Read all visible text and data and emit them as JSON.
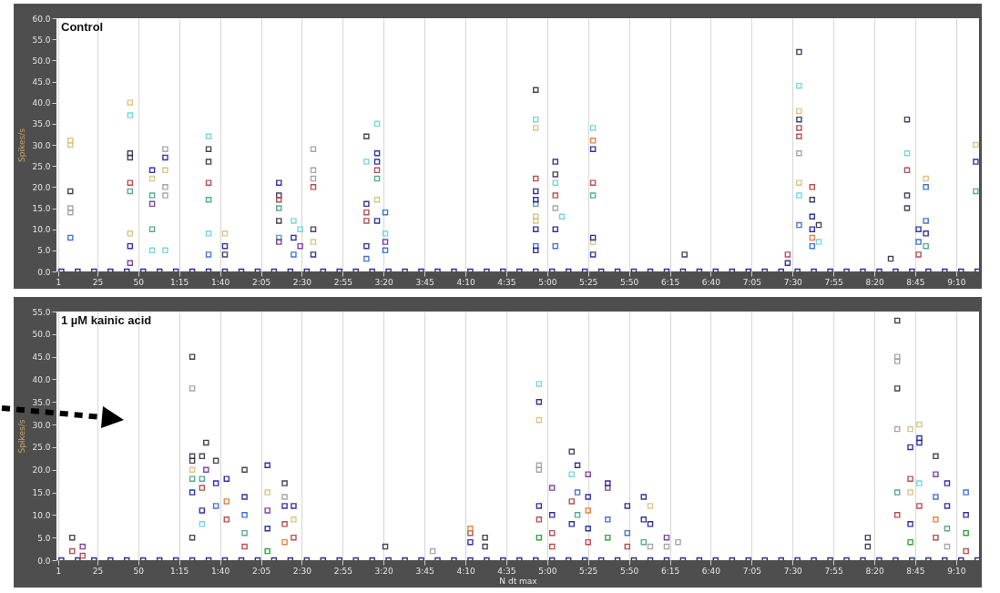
{
  "chart_data": [
    {
      "type": "scatter",
      "title": "Control",
      "ylabel": "Spikes/s",
      "xlim": [
        0,
        564
      ],
      "ylim": [
        0,
        60
      ],
      "grid": "x",
      "marker": "square",
      "xticks": [
        1,
        25,
        50,
        {
          "value": 75,
          "label": "1:15"
        },
        {
          "value": 100,
          "label": "1:40"
        },
        {
          "value": 125,
          "label": "2:05"
        },
        {
          "value": 150,
          "label": "2:30"
        },
        {
          "value": 175,
          "label": "2:55"
        },
        {
          "value": 200,
          "label": "3:20"
        },
        {
          "value": 225,
          "label": "3:45"
        },
        {
          "value": 250,
          "label": "4:10"
        },
        {
          "value": 275,
          "label": "4:35"
        },
        {
          "value": 300,
          "label": "5:00"
        },
        {
          "value": 325,
          "label": "5:25"
        },
        {
          "value": 350,
          "label": "5:50"
        },
        {
          "value": 375,
          "label": "6:15"
        },
        {
          "value": 400,
          "label": "6:40"
        },
        {
          "value": 425,
          "label": "7:05"
        },
        {
          "value": 450,
          "label": "7:30"
        },
        {
          "value": 475,
          "label": "7:55"
        },
        {
          "value": 500,
          "label": "8:20"
        },
        {
          "value": 525,
          "label": "8:45"
        },
        {
          "value": 550,
          "label": "9:10"
        }
      ],
      "yticks": [
        {
          "value": 0,
          "label": "0.0"
        },
        {
          "value": 5,
          "label": "5.0"
        },
        {
          "value": 10,
          "label": "10.0"
        },
        {
          "value": 15,
          "label": "15.0"
        },
        {
          "value": 20,
          "label": "20.0"
        },
        {
          "value": 25,
          "label": "25.0"
        },
        {
          "value": 30,
          "label": "30.0"
        },
        {
          "value": 35,
          "label": "35.0"
        },
        {
          "value": 40,
          "label": "40.0"
        },
        {
          "value": 45,
          "label": "45.0"
        },
        {
          "value": 50,
          "label": "50.0"
        },
        {
          "value": 55,
          "label": "55.0"
        },
        {
          "value": 60,
          "label": "60.0"
        }
      ],
      "series": [
        {
          "color": "#1f1f8f",
          "x": [
            3,
            13,
            23,
            33,
            43,
            53,
            63,
            73,
            83,
            93,
            103,
            113,
            123,
            133,
            143,
            153,
            163,
            173,
            183,
            193,
            203,
            213,
            223,
            233,
            243,
            253,
            263,
            273,
            283,
            293,
            303,
            313,
            323,
            333,
            343,
            353,
            363,
            373,
            383,
            393,
            403,
            413,
            423,
            433,
            443,
            453,
            463,
            473,
            483,
            493,
            503,
            513,
            523,
            533,
            543,
            553,
            563
          ],
          "values": [
            0,
            0,
            0,
            0,
            0,
            0,
            0,
            0,
            0,
            0,
            0,
            0,
            0,
            0,
            0,
            0,
            0,
            0,
            0,
            0,
            0,
            0,
            0,
            0,
            0,
            0,
            0,
            0,
            0,
            0,
            0,
            0,
            0,
            0,
            0,
            0,
            0,
            0,
            0,
            0,
            0,
            0,
            0,
            0,
            0,
            0,
            0,
            0,
            0,
            0,
            0,
            0,
            0,
            0,
            0,
            0,
            0
          ]
        },
        {
          "color": "#d9c37c",
          "x": [
            8.5,
            8.5,
            45,
            45,
            58.5,
            66.5,
            103,
            157,
            196,
            293,
            293,
            293,
            328,
            454,
            454,
            531.5,
            562
          ],
          "values": [
            31,
            30,
            40,
            9,
            22,
            24,
            9,
            7,
            17,
            34,
            13,
            12,
            7,
            38,
            21,
            22,
            30
          ]
        },
        {
          "color": "#74d3df",
          "x": [
            45,
            58.5,
            66.5,
            93,
            93,
            145,
            149,
            189.5,
            196,
            201,
            293,
            305,
            309,
            328,
            454,
            454,
            466,
            520
          ],
          "values": [
            37,
            5,
            5,
            32,
            9,
            12,
            10,
            26,
            35,
            9,
            36,
            21,
            13,
            34,
            44,
            18,
            7,
            28
          ]
        },
        {
          "color": "#3a3a52",
          "x": [
            8.5,
            45,
            45,
            93,
            93,
            103,
            136,
            136,
            157,
            189.5,
            293,
            305,
            384,
            454,
            454,
            462,
            466,
            510,
            520,
            520,
            520
          ],
          "values": [
            19,
            28,
            27,
            29,
            26,
            4,
            18,
            12,
            10,
            32,
            43,
            23,
            4,
            52,
            36,
            17,
            11,
            3,
            36,
            18,
            15
          ]
        },
        {
          "color": "#a3a3a3",
          "x": [
            8.5,
            8.5,
            66.5,
            66.5,
            66.5,
            157,
            157,
            157,
            305,
            454
          ],
          "values": [
            15,
            14,
            29,
            20,
            18,
            29,
            24,
            22,
            15,
            28
          ]
        },
        {
          "color": "#3b6fd1",
          "x": [
            8.5,
            93,
            145,
            189.5,
            201,
            201,
            293,
            305,
            454,
            462,
            527,
            531.5,
            531.5
          ],
          "values": [
            8,
            4,
            4,
            3,
            14,
            5,
            6,
            6,
            11,
            6,
            7,
            20,
            12
          ]
        },
        {
          "color": "#b5474a",
          "x": [
            45,
            93,
            136,
            157,
            189.5,
            189.5,
            196,
            293,
            305,
            328,
            447,
            454,
            454,
            462,
            520,
            527
          ],
          "values": [
            21,
            21,
            17,
            20,
            14,
            12,
            24,
            22,
            18,
            21,
            4,
            34,
            32,
            20,
            24,
            4
          ]
        },
        {
          "color": "#4fa68c",
          "x": [
            45,
            58.5,
            58.5,
            93,
            136,
            136,
            196,
            293,
            328,
            531.5,
            562
          ],
          "values": [
            19,
            18,
            10,
            17,
            15,
            8,
            22,
            16,
            18,
            6,
            19
          ]
        },
        {
          "color": "#2a2a9a",
          "x": [
            45,
            58.5,
            66.5,
            103,
            136,
            145,
            157,
            189.5,
            189.5,
            196,
            196,
            196,
            293,
            293,
            293,
            293,
            305,
            305,
            328,
            328,
            328,
            447,
            462,
            462,
            527,
            531.5,
            562
          ],
          "values": [
            6,
            24,
            27,
            6,
            21,
            8,
            4,
            16,
            6,
            28,
            26,
            12,
            19,
            17,
            10,
            5,
            26,
            10,
            29,
            8,
            4,
            2,
            13,
            10,
            10,
            9,
            26
          ]
        },
        {
          "color": "#7b3d97",
          "x": [
            45,
            58.5,
            136,
            149,
            201
          ],
          "values": [
            2,
            16,
            7,
            6,
            7
          ]
        },
        {
          "color": "#e0803a",
          "x": [
            328,
            462
          ],
          "values": [
            31,
            8
          ]
        }
      ]
    },
    {
      "type": "scatter",
      "title": "1 µM kainic acid",
      "xlabel": "N dt max",
      "ylabel": "Spikes/s",
      "xlim": [
        0,
        564
      ],
      "ylim": [
        0,
        55
      ],
      "grid": "x",
      "marker": "square",
      "xticks": [
        1,
        25,
        50,
        {
          "value": 75,
          "label": "1:15"
        },
        {
          "value": 100,
          "label": "1:40"
        },
        {
          "value": 125,
          "label": "2:05"
        },
        {
          "value": 150,
          "label": "2:30"
        },
        {
          "value": 175,
          "label": "2:55"
        },
        {
          "value": 200,
          "label": "3:20"
        },
        {
          "value": 225,
          "label": "3:45"
        },
        {
          "value": 250,
          "label": "4:10"
        },
        {
          "value": 275,
          "label": "4:35"
        },
        {
          "value": 300,
          "label": "5:00"
        },
        {
          "value": 325,
          "label": "5:25"
        },
        {
          "value": 350,
          "label": "5:50"
        },
        {
          "value": 375,
          "label": "6:15"
        },
        {
          "value": 400,
          "label": "6:40"
        },
        {
          "value": 425,
          "label": "7:05"
        },
        {
          "value": 450,
          "label": "7:30"
        },
        {
          "value": 475,
          "label": "7:55"
        },
        {
          "value": 500,
          "label": "8:20"
        },
        {
          "value": 525,
          "label": "8:45"
        },
        {
          "value": 550,
          "label": "9:10"
        }
      ],
      "yticks": [
        {
          "value": 0,
          "label": "0.0"
        },
        {
          "value": 5,
          "label": "5.0"
        },
        {
          "value": 10,
          "label": "10.0"
        },
        {
          "value": 15,
          "label": "15.0"
        },
        {
          "value": 20,
          "label": "20.0"
        },
        {
          "value": 25,
          "label": "25.0"
        },
        {
          "value": 30,
          "label": "30.0"
        },
        {
          "value": 35,
          "label": "35.0"
        },
        {
          "value": 40,
          "label": "40.0"
        },
        {
          "value": 45,
          "label": "45.0"
        },
        {
          "value": 50,
          "label": "50.0"
        },
        {
          "value": 55,
          "label": "55.0"
        }
      ],
      "series": [
        {
          "color": "#1f1f8f",
          "x": [
            3,
            13,
            23,
            33,
            43,
            53,
            63,
            73,
            83,
            93,
            103,
            113,
            123,
            133,
            143,
            153,
            163,
            173,
            183,
            193,
            203,
            213,
            223,
            233,
            243,
            253,
            263,
            273,
            283,
            293,
            303,
            313,
            323,
            333,
            343,
            353,
            363,
            373,
            383,
            393,
            403,
            413,
            423,
            433,
            443,
            453,
            463,
            473,
            483,
            493,
            503,
            513,
            523,
            533,
            543,
            553,
            563
          ],
          "values": [
            0,
            0,
            0,
            0,
            0,
            0,
            0,
            0,
            0,
            0,
            0,
            0,
            0,
            0,
            0,
            0,
            0,
            0,
            0,
            0,
            0,
            0,
            0,
            0,
            0,
            0,
            0,
            0,
            0,
            0,
            0,
            0,
            0,
            0,
            0,
            0,
            0,
            0,
            0,
            0,
            0,
            0,
            0,
            0,
            0,
            0,
            0,
            0,
            0,
            0,
            0,
            0,
            0,
            0,
            0,
            0,
            0
          ]
        },
        {
          "color": "#3a3a52",
          "x": [
            9.6,
            83,
            83,
            83,
            83,
            89,
            91.5,
            97.5,
            115,
            139.5,
            201,
            262,
            262,
            315,
            496,
            496,
            514,
            514,
            537.5
          ],
          "values": [
            5,
            45,
            23,
            22,
            5,
            23,
            26,
            22,
            20,
            17,
            3,
            5,
            3,
            24,
            5,
            3,
            53,
            38,
            23
          ]
        },
        {
          "color": "#b5474a",
          "x": [
            9.6,
            16,
            89,
            104,
            115,
            139.5,
            145,
            253,
            295,
            303,
            303,
            315,
            325,
            349,
            514,
            522,
            527.5,
            537.5,
            556
          ],
          "values": [
            2,
            1,
            16,
            9,
            3,
            8,
            5,
            6,
            9,
            6,
            3,
            13,
            4,
            3,
            10,
            18,
            12,
            5,
            2
          ]
        },
        {
          "color": "#7b3d97",
          "x": [
            16,
            91.5,
            129,
            303,
            325,
            337,
            373,
            537.5
          ],
          "values": [
            3,
            20,
            11,
            16,
            19,
            16,
            5,
            19
          ]
        },
        {
          "color": "#a3a3a3",
          "x": [
            83,
            139.5,
            230,
            295,
            295,
            363,
            373,
            380,
            514,
            514,
            514,
            544.5
          ],
          "values": [
            38,
            14,
            2,
            21,
            20,
            3,
            3,
            4,
            45,
            44,
            29,
            3
          ]
        },
        {
          "color": "#d9c37c",
          "x": [
            83,
            129,
            145,
            295,
            363,
            522,
            522,
            527.5
          ],
          "values": [
            20,
            15,
            9,
            31,
            12,
            29,
            15,
            30
          ]
        },
        {
          "color": "#4fa68c",
          "x": [
            83,
            89,
            115,
            318.5,
            359,
            514,
            544.5
          ],
          "values": [
            18,
            18,
            6,
            10,
            4,
            15,
            7
          ]
        },
        {
          "color": "#2a2a9a",
          "x": [
            83,
            89,
            97.5,
            104,
            115,
            129,
            129,
            139.5,
            145,
            253,
            295,
            295,
            303,
            315,
            318.5,
            325,
            325,
            337,
            349,
            359,
            359,
            363,
            522,
            522,
            527.5,
            527.5,
            544.5,
            544.5,
            556
          ],
          "values": [
            15,
            11,
            17,
            18,
            14,
            21,
            7,
            12,
            12,
            4,
            35,
            12,
            10,
            8,
            21,
            14,
            7,
            17,
            12,
            14,
            9,
            8,
            25,
            8,
            27,
            26,
            17,
            12,
            10
          ]
        },
        {
          "color": "#74d3df",
          "x": [
            89,
            295,
            315,
            527.5
          ],
          "values": [
            8,
            39,
            19,
            17
          ]
        },
        {
          "color": "#3b6fd1",
          "x": [
            97.5,
            115,
            318.5,
            337,
            349,
            537.5,
            556
          ],
          "values": [
            12,
            10,
            15,
            9,
            6,
            14,
            15
          ]
        },
        {
          "color": "#e0803a",
          "x": [
            104,
            139.5,
            253,
            325,
            537.5
          ],
          "values": [
            13,
            4,
            7,
            11,
            9
          ]
        },
        {
          "color": "#2ca02c",
          "x": [
            129,
            295,
            337,
            522,
            556
          ],
          "values": [
            2,
            5,
            5,
            4,
            6
          ]
        }
      ]
    }
  ]
}
